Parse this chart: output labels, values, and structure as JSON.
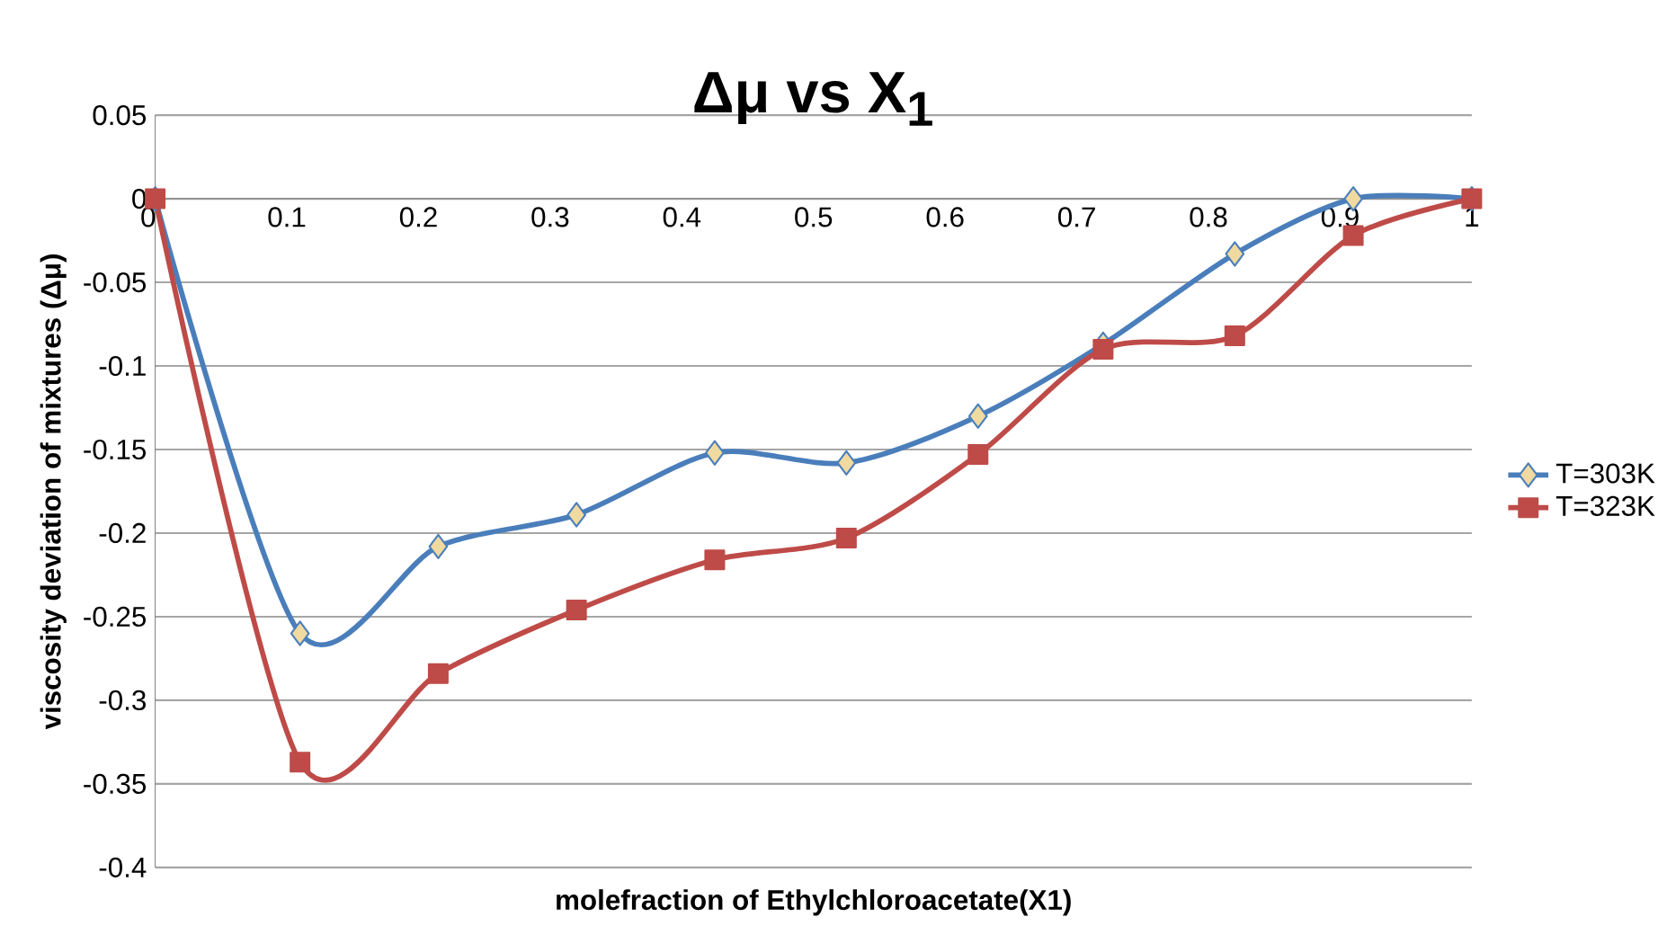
{
  "chart_data": {
    "type": "line",
    "title": "Δμ vs X$_{1}$",
    "xlabel": "molefraction of Ethylchloroacetate(X1)",
    "ylabel": "viscosity deviation of mixtures (Δμ)",
    "xlim": [
      0,
      1
    ],
    "xticks": [
      0,
      0.1,
      0.2,
      0.3,
      0.4,
      0.5,
      0.6,
      0.7,
      0.8,
      0.9,
      1
    ],
    "ylim": [
      -0.4,
      0.05
    ],
    "yticks": [
      -0.4,
      -0.35,
      -0.3,
      -0.25,
      -0.2,
      -0.15,
      -0.1,
      -0.05,
      0,
      0.05
    ],
    "x": [
      0,
      0.11,
      0.215,
      0.32,
      0.425,
      0.525,
      0.625,
      0.72,
      0.82,
      0.91,
      1
    ],
    "series": [
      {
        "name": "T=303K",
        "color": "#4a7ebb",
        "marker": "diamond",
        "values": [
          0,
          -0.26,
          -0.208,
          -0.189,
          -0.152,
          -0.158,
          -0.13,
          -0.087,
          -0.033,
          0,
          0
        ]
      },
      {
        "name": "T=323K",
        "color": "#be4b48",
        "marker": "square",
        "values": [
          0,
          -0.337,
          -0.284,
          -0.246,
          -0.216,
          -0.203,
          -0.153,
          -0.09,
          -0.082,
          -0.022,
          0
        ]
      }
    ],
    "grid": "y",
    "legend": "right"
  }
}
